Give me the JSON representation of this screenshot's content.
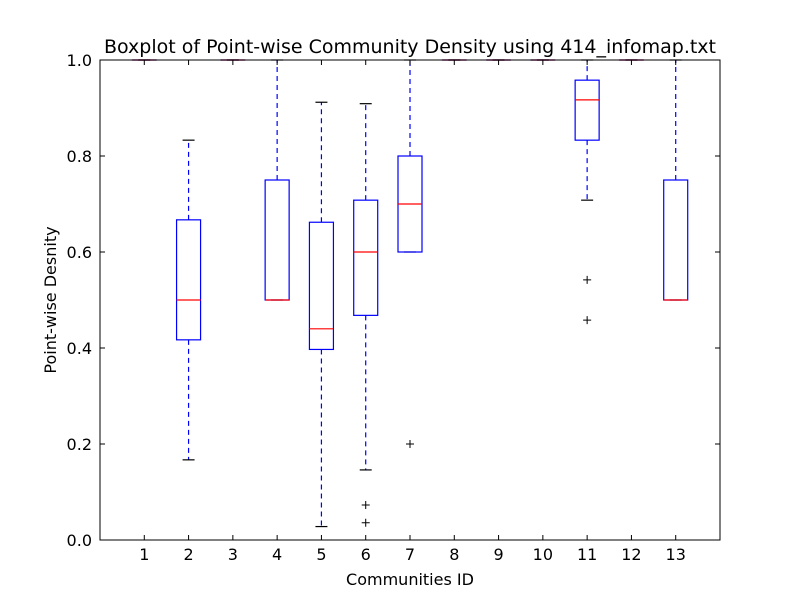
{
  "chart_data": {
    "type": "boxplot",
    "title": "Boxplot of Point-wise Community Density using 414_infomap.txt",
    "xlabel": "Communities ID",
    "ylabel": "Point-wise Desnity",
    "ylim": [
      0.0,
      1.0
    ],
    "yticks": [
      {
        "value": 0.0,
        "label": "0.0"
      },
      {
        "value": 0.2,
        "label": "0.2"
      },
      {
        "value": 0.4,
        "label": "0.4"
      },
      {
        "value": 0.6,
        "label": "0.6"
      },
      {
        "value": 0.8,
        "label": "0.8"
      },
      {
        "value": 1.0,
        "label": "1.0"
      }
    ],
    "categories": [
      "1",
      "2",
      "3",
      "4",
      "5",
      "6",
      "7",
      "8",
      "9",
      "10",
      "11",
      "12",
      "13"
    ],
    "boxes": [
      {
        "id": "1",
        "whisker_low": 1.0,
        "q1": 1.0,
        "median": 1.0,
        "q3": 1.0,
        "whisker_high": 1.0,
        "outliers": []
      },
      {
        "id": "2",
        "whisker_low": 0.167,
        "q1": 0.417,
        "median": 0.5,
        "q3": 0.667,
        "whisker_high": 0.833,
        "outliers": []
      },
      {
        "id": "3",
        "whisker_low": 1.0,
        "q1": 1.0,
        "median": 1.0,
        "q3": 1.0,
        "whisker_high": 1.0,
        "outliers": []
      },
      {
        "id": "4",
        "whisker_low": 0.5,
        "q1": 0.5,
        "median": 0.5,
        "q3": 0.75,
        "whisker_high": 1.0,
        "outliers": []
      },
      {
        "id": "5",
        "whisker_low": 0.028,
        "q1": 0.397,
        "median": 0.44,
        "q3": 0.662,
        "whisker_high": 0.912,
        "outliers": []
      },
      {
        "id": "6",
        "whisker_low": 0.146,
        "q1": 0.468,
        "median": 0.6,
        "q3": 0.708,
        "whisker_high": 0.909,
        "outliers": [
          0.073,
          0.036
        ]
      },
      {
        "id": "7",
        "whisker_low": 0.6,
        "q1": 0.6,
        "median": 0.7,
        "q3": 0.8,
        "whisker_high": 1.0,
        "outliers": [
          0.2
        ]
      },
      {
        "id": "8",
        "whisker_low": 1.0,
        "q1": 1.0,
        "median": 1.0,
        "q3": 1.0,
        "whisker_high": 1.0,
        "outliers": []
      },
      {
        "id": "9",
        "whisker_low": 1.0,
        "q1": 1.0,
        "median": 1.0,
        "q3": 1.0,
        "whisker_high": 1.0,
        "outliers": []
      },
      {
        "id": "10",
        "whisker_low": 1.0,
        "q1": 1.0,
        "median": 1.0,
        "q3": 1.0,
        "whisker_high": 1.0,
        "outliers": []
      },
      {
        "id": "11",
        "whisker_low": 0.708,
        "q1": 0.833,
        "median": 0.917,
        "q3": 0.958,
        "whisker_high": 1.0,
        "outliers": [
          0.542,
          0.458
        ]
      },
      {
        "id": "12",
        "whisker_low": 1.0,
        "q1": 1.0,
        "median": 1.0,
        "q3": 1.0,
        "whisker_high": 1.0,
        "outliers": []
      },
      {
        "id": "13",
        "whisker_low": 0.5,
        "q1": 0.5,
        "median": 0.5,
        "q3": 0.75,
        "whisker_high": 1.0,
        "outliers": []
      }
    ],
    "colors": {
      "box": "#0000ff",
      "whisker": "#0000ff",
      "median": "#ff0000",
      "cap": "#000000",
      "flier": "#000000",
      "axes": "#000000"
    }
  }
}
